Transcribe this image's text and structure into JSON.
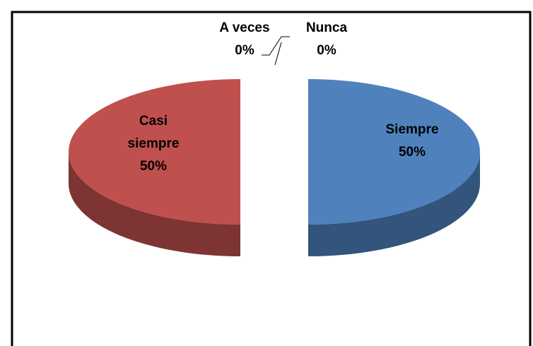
{
  "chart_data": {
    "type": "pie",
    "categories": [
      "Siempre",
      "Casi siempre",
      "A veces",
      "Nunca"
    ],
    "values": [
      50,
      50,
      0,
      0
    ],
    "value_labels": [
      "50%",
      "50%",
      "0%",
      "0%"
    ],
    "colors": [
      "#4f81bd",
      "#c0504d",
      "#9bbb59",
      "#8064a2"
    ],
    "three_d": true,
    "exploded": true
  }
}
